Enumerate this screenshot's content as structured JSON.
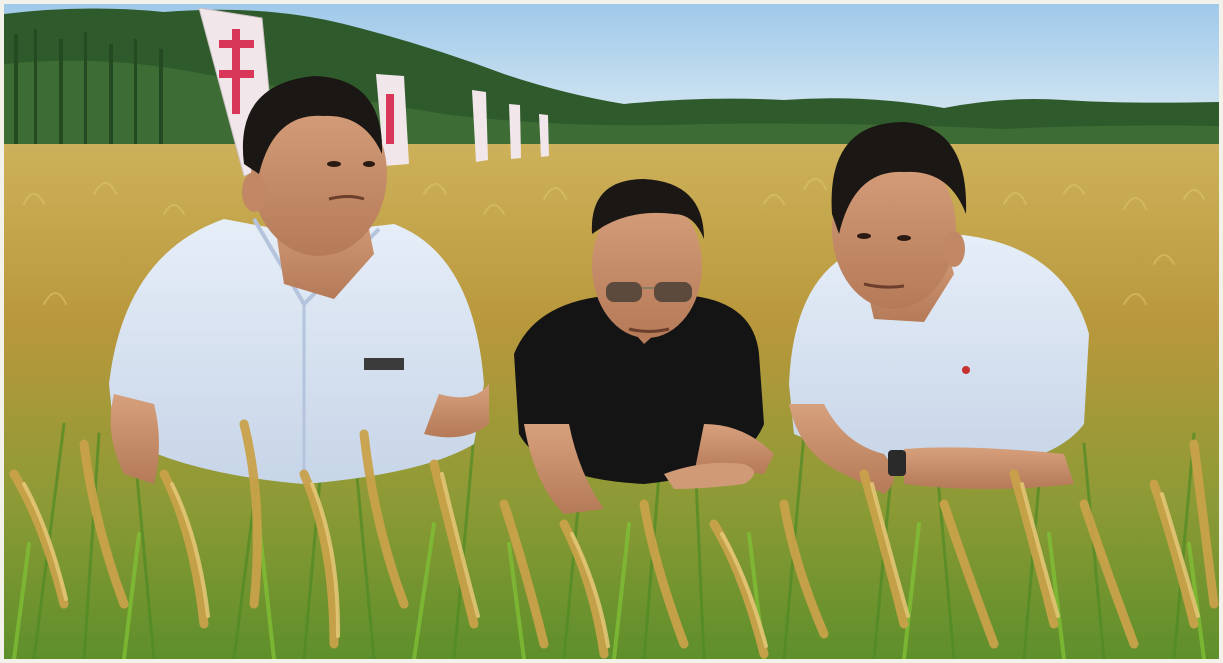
{
  "photo": {
    "colors": {
      "sky_top": "#9fc9ea",
      "sky_bottom": "#dcecf4",
      "trees": "#2f5a2c",
      "field_gold": "#c9a94a",
      "field_green": "#5d9a2e",
      "shirt_blue": "#dfe9f6",
      "tshirt_black": "#141414",
      "skin": "#c98e6a",
      "hair": "#1b1714",
      "banner": "#f1e6ea",
      "banner_accent": "#d9375a"
    },
    "people": [
      "man-left-light-blue-shirt",
      "man-center-black-tshirt-sunglasses",
      "man-right-light-blue-shirt"
    ]
  }
}
